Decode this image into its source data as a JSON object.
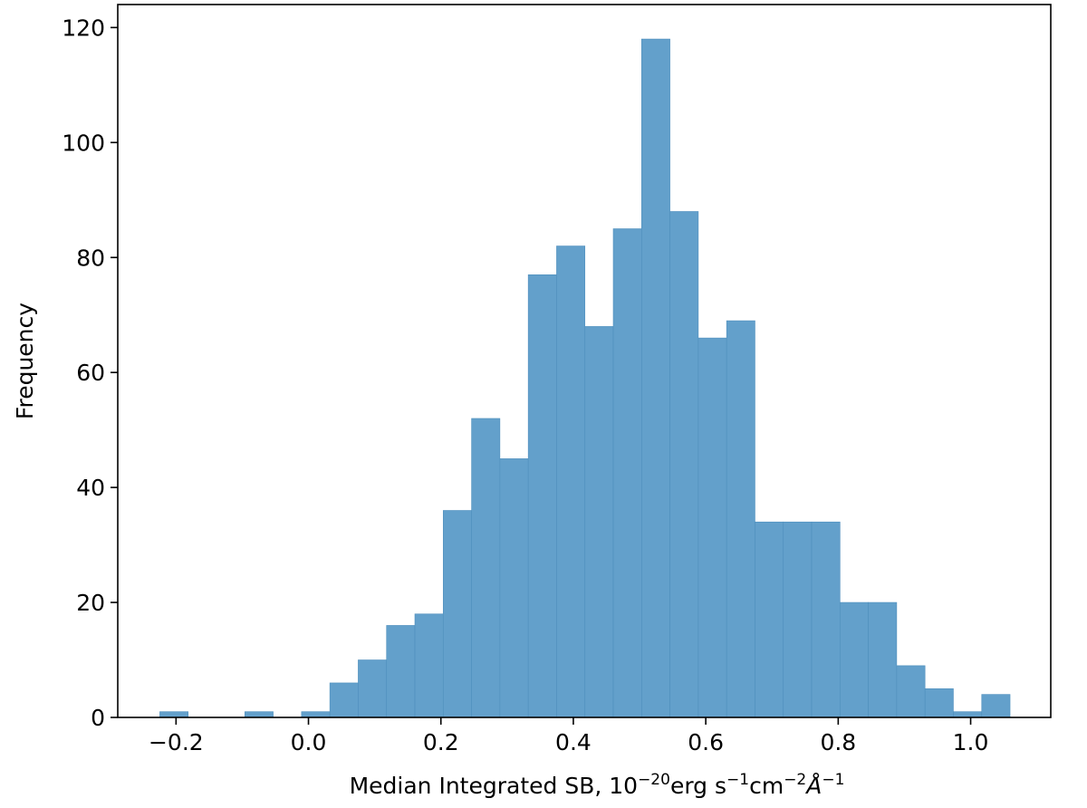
{
  "chart_data": {
    "type": "bar",
    "subtype": "histogram",
    "xlabel": {
      "prefix": "Median Integrated SB, 10",
      "exp1": "−20",
      "mid": "erg s",
      "exp2": "−1",
      "mid2": "cm",
      "exp3": "−2",
      "mid3": "Å",
      "exp4": "−1"
    },
    "ylabel": "Frequency",
    "xlim": [
      -0.288,
      1.121
    ],
    "ylim": [
      0,
      124
    ],
    "grid": false,
    "bar_color": "#63a0cb",
    "bar_edge_color": "#4f8fbd",
    "x_ticks": [
      {
        "value": -0.2,
        "label": "−0.2"
      },
      {
        "value": 0.0,
        "label": "0.0"
      },
      {
        "value": 0.2,
        "label": "0.2"
      },
      {
        "value": 0.4,
        "label": "0.4"
      },
      {
        "value": 0.6,
        "label": "0.6"
      },
      {
        "value": 0.8,
        "label": "0.8"
      },
      {
        "value": 1.0,
        "label": "1.0"
      }
    ],
    "y_ticks": [
      {
        "value": 0,
        "label": "0"
      },
      {
        "value": 20,
        "label": "20"
      },
      {
        "value": 40,
        "label": "40"
      },
      {
        "value": 60,
        "label": "60"
      },
      {
        "value": 80,
        "label": "80"
      },
      {
        "value": 100,
        "label": "100"
      },
      {
        "value": 120,
        "label": "120"
      }
    ],
    "bins": {
      "start": -0.2245,
      "width": 0.0428,
      "counts": [
        1,
        0,
        0,
        1,
        0,
        1,
        6,
        10,
        16,
        18,
        36,
        52,
        45,
        77,
        82,
        68,
        85,
        118,
        88,
        66,
        69,
        34,
        34,
        34,
        20,
        20,
        9,
        5,
        1,
        4
      ]
    }
  }
}
